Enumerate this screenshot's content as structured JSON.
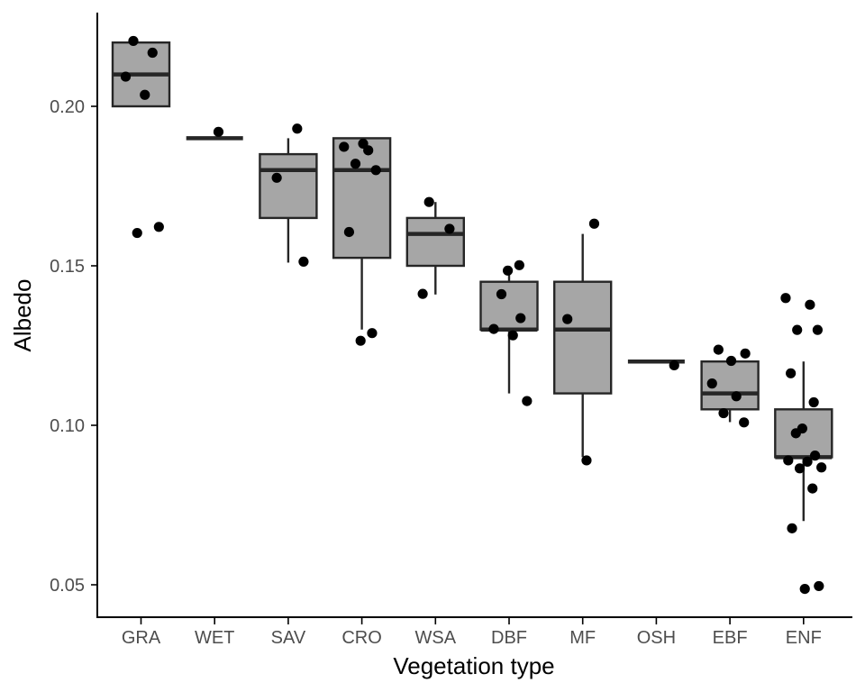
{
  "chart_data": {
    "type": "boxplot",
    "xlabel": "Vegetation type",
    "ylabel": "Albedo",
    "ylim": [
      0.04,
      0.23
    ],
    "yticks": [
      0.05,
      0.1,
      0.15,
      0.2
    ],
    "ytick_labels": [
      "0.05",
      "0.10",
      "0.15",
      "0.20"
    ],
    "categories": [
      "GRA",
      "WET",
      "SAV",
      "CRO",
      "WSA",
      "DBF",
      "MF",
      "OSH",
      "EBF",
      "ENF"
    ],
    "grid": false,
    "legend": "none",
    "box_fill": "#a6a6a6",
    "box_stroke": "#262626",
    "point_color": "#000000",
    "boxes": [
      {
        "category": "GRA",
        "q1": 0.2,
        "median": 0.21,
        "q3": 0.22,
        "whisker_low": 0.2,
        "whisker_high": 0.22,
        "points": [
          0.2205,
          0.2168,
          0.2093,
          0.2036,
          0.1622,
          0.1603
        ]
      },
      {
        "category": "WET",
        "q1": 0.19,
        "median": 0.19,
        "q3": 0.19,
        "whisker_low": 0.19,
        "whisker_high": 0.19,
        "points": [
          0.192
        ]
      },
      {
        "category": "SAV",
        "q1": 0.165,
        "median": 0.18,
        "q3": 0.185,
        "whisker_low": 0.151,
        "whisker_high": 0.19,
        "points": [
          0.193,
          0.1776,
          0.1513
        ]
      },
      {
        "category": "CRO",
        "q1": 0.1525,
        "median": 0.18,
        "q3": 0.19,
        "whisker_low": 0.13,
        "whisker_high": 0.19,
        "points": [
          0.1883,
          0.1873,
          0.1862,
          0.182,
          0.18,
          0.1606,
          0.1289,
          0.1265
        ]
      },
      {
        "category": "WSA",
        "q1": 0.15,
        "median": 0.16,
        "q3": 0.165,
        "whisker_low": 0.141,
        "whisker_high": 0.17,
        "points": [
          0.17,
          0.1616,
          0.1412
        ]
      },
      {
        "category": "DBF",
        "q1": 0.13,
        "median": 0.13,
        "q3": 0.145,
        "whisker_low": 0.11,
        "whisker_high": 0.15,
        "points": [
          0.1502,
          0.1485,
          0.1411,
          0.1336,
          0.1302,
          0.1282,
          0.1076
        ]
      },
      {
        "category": "MF",
        "q1": 0.11,
        "median": 0.13,
        "q3": 0.145,
        "whisker_low": 0.09,
        "whisker_high": 0.16,
        "points": [
          0.1632,
          0.1333,
          0.089
        ]
      },
      {
        "category": "OSH",
        "q1": 0.12,
        "median": 0.12,
        "q3": 0.12,
        "whisker_low": 0.12,
        "whisker_high": 0.12,
        "points": [
          0.1188
        ]
      },
      {
        "category": "EBF",
        "q1": 0.105,
        "median": 0.11,
        "q3": 0.12,
        "whisker_low": 0.101,
        "whisker_high": 0.12,
        "points": [
          0.1237,
          0.1225,
          0.1202,
          0.1131,
          0.1091,
          0.1038,
          0.1009
        ]
      },
      {
        "category": "ENF",
        "q1": 0.09,
        "median": 0.09,
        "q3": 0.105,
        "whisker_low": 0.07,
        "whisker_high": 0.12,
        "points": [
          0.1399,
          0.1378,
          0.1299,
          0.1299,
          0.1163,
          0.1072,
          0.099,
          0.0975,
          0.0905,
          0.089,
          0.0886,
          0.0868,
          0.0865,
          0.0802,
          0.0677,
          0.0496,
          0.0487
        ]
      }
    ]
  }
}
